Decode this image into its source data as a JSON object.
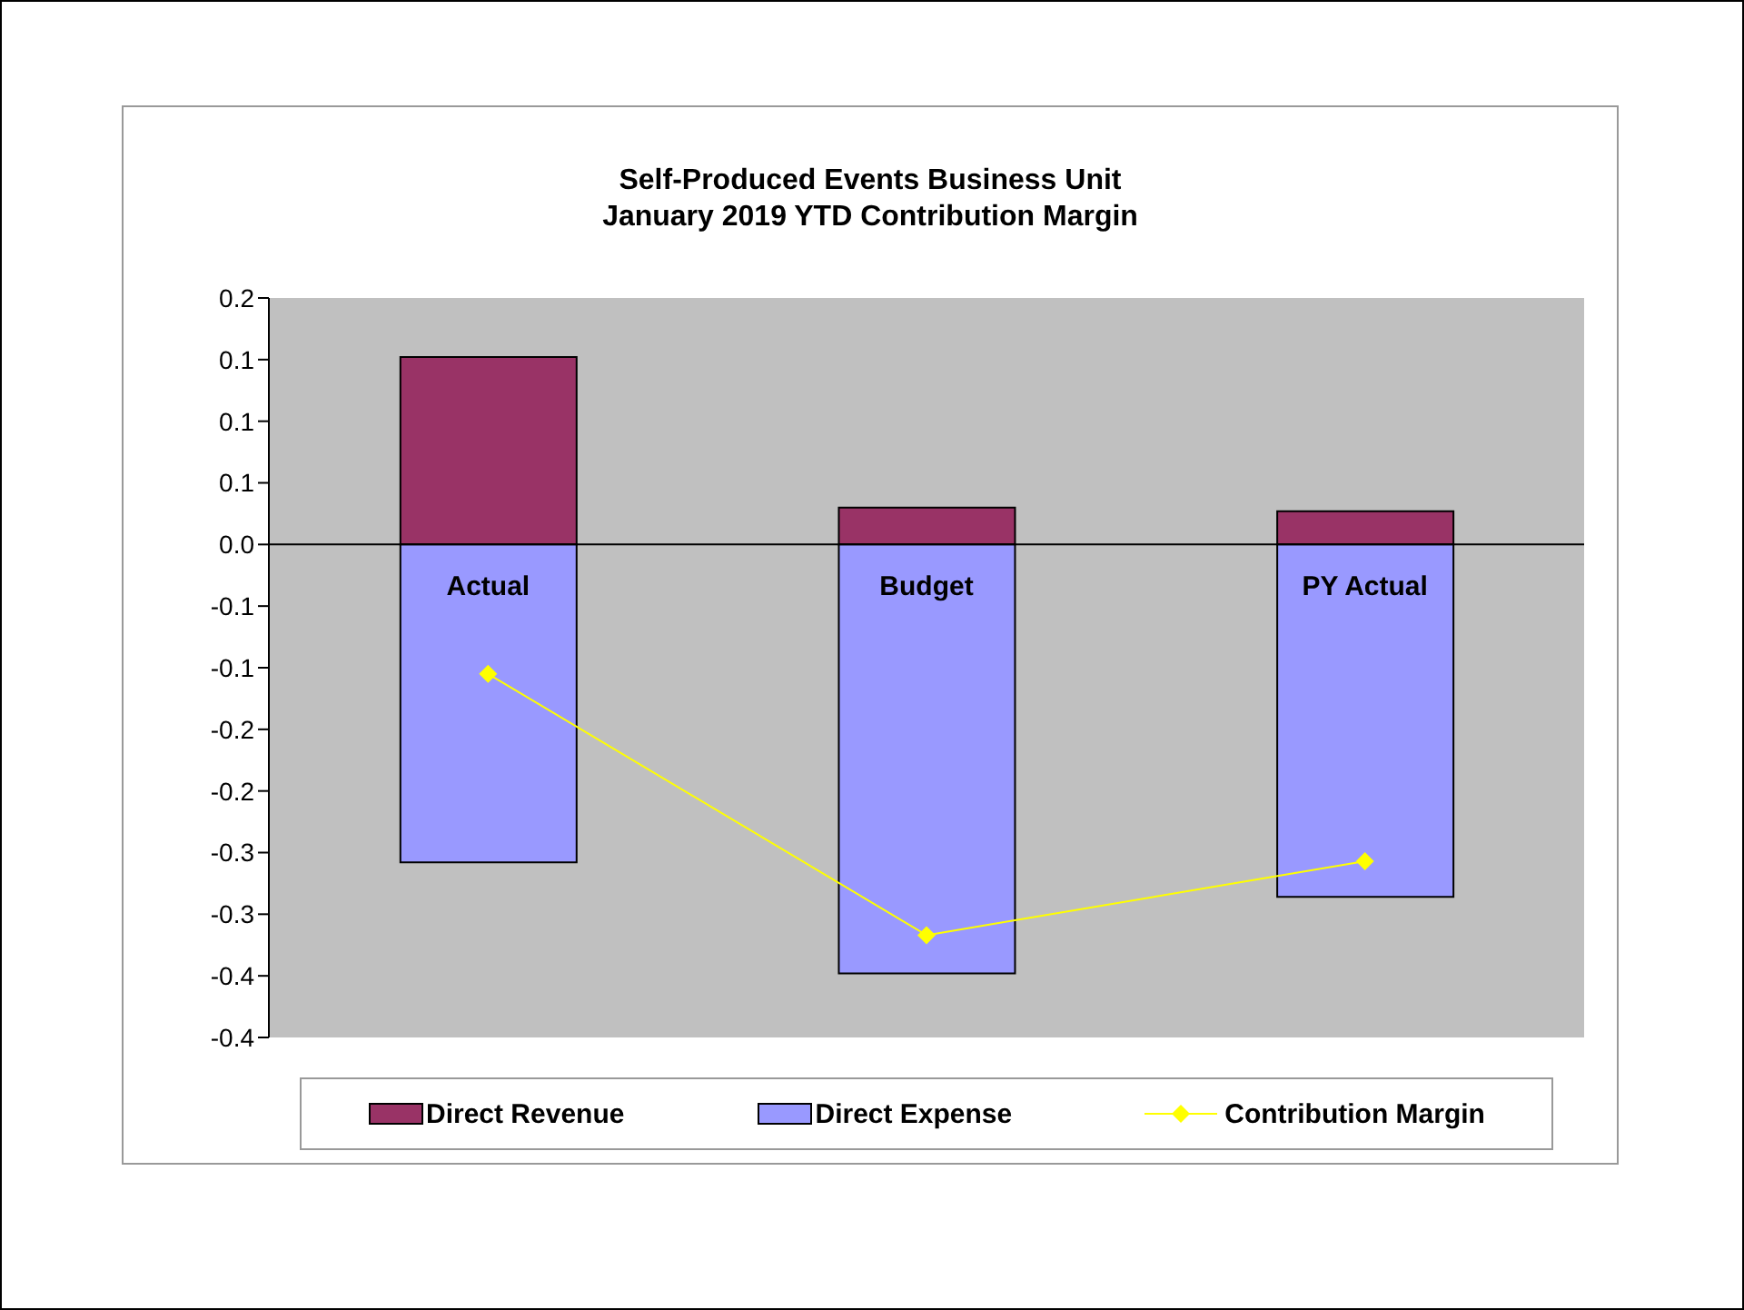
{
  "chart_data": {
    "type": "bar",
    "title": "Self-Produced Events Business Unit\nJanuary 2019 YTD Contribution Margin",
    "categories": [
      "Actual",
      "Budget",
      "PY Actual"
    ],
    "stacked": true,
    "series": [
      {
        "name": "Direct Revenue",
        "color": "#993366",
        "values": [
          0.152,
          0.03,
          0.027
        ]
      },
      {
        "name": "Direct Expense",
        "color": "#9999ff",
        "values": [
          -0.258,
          -0.348,
          -0.286
        ]
      },
      {
        "name": "Contribution Margin",
        "type": "line",
        "color": "#ffff00",
        "marker": "diamond",
        "values": [
          -0.105,
          -0.317,
          -0.257
        ]
      }
    ],
    "ylim": [
      -0.4,
      0.2
    ],
    "yticks": [
      {
        "value": 0.2,
        "label": "0.2"
      },
      {
        "value": 0.15,
        "label": "0.1"
      },
      {
        "value": 0.1,
        "label": "0.1"
      },
      {
        "value": 0.05,
        "label": "0.1"
      },
      {
        "value": 0,
        "label": "0.0"
      },
      {
        "value": -0.05,
        "label": "-0.1"
      },
      {
        "value": -0.1,
        "label": "-0.1"
      },
      {
        "value": -0.15,
        "label": "-0.2"
      },
      {
        "value": -0.2,
        "label": "-0.2"
      },
      {
        "value": -0.25,
        "label": "-0.3"
      },
      {
        "value": -0.3,
        "label": "-0.3"
      },
      {
        "value": -0.35,
        "label": "-0.4"
      },
      {
        "value": -0.4,
        "label": "-0.4"
      }
    ],
    "legend": "bottom"
  }
}
